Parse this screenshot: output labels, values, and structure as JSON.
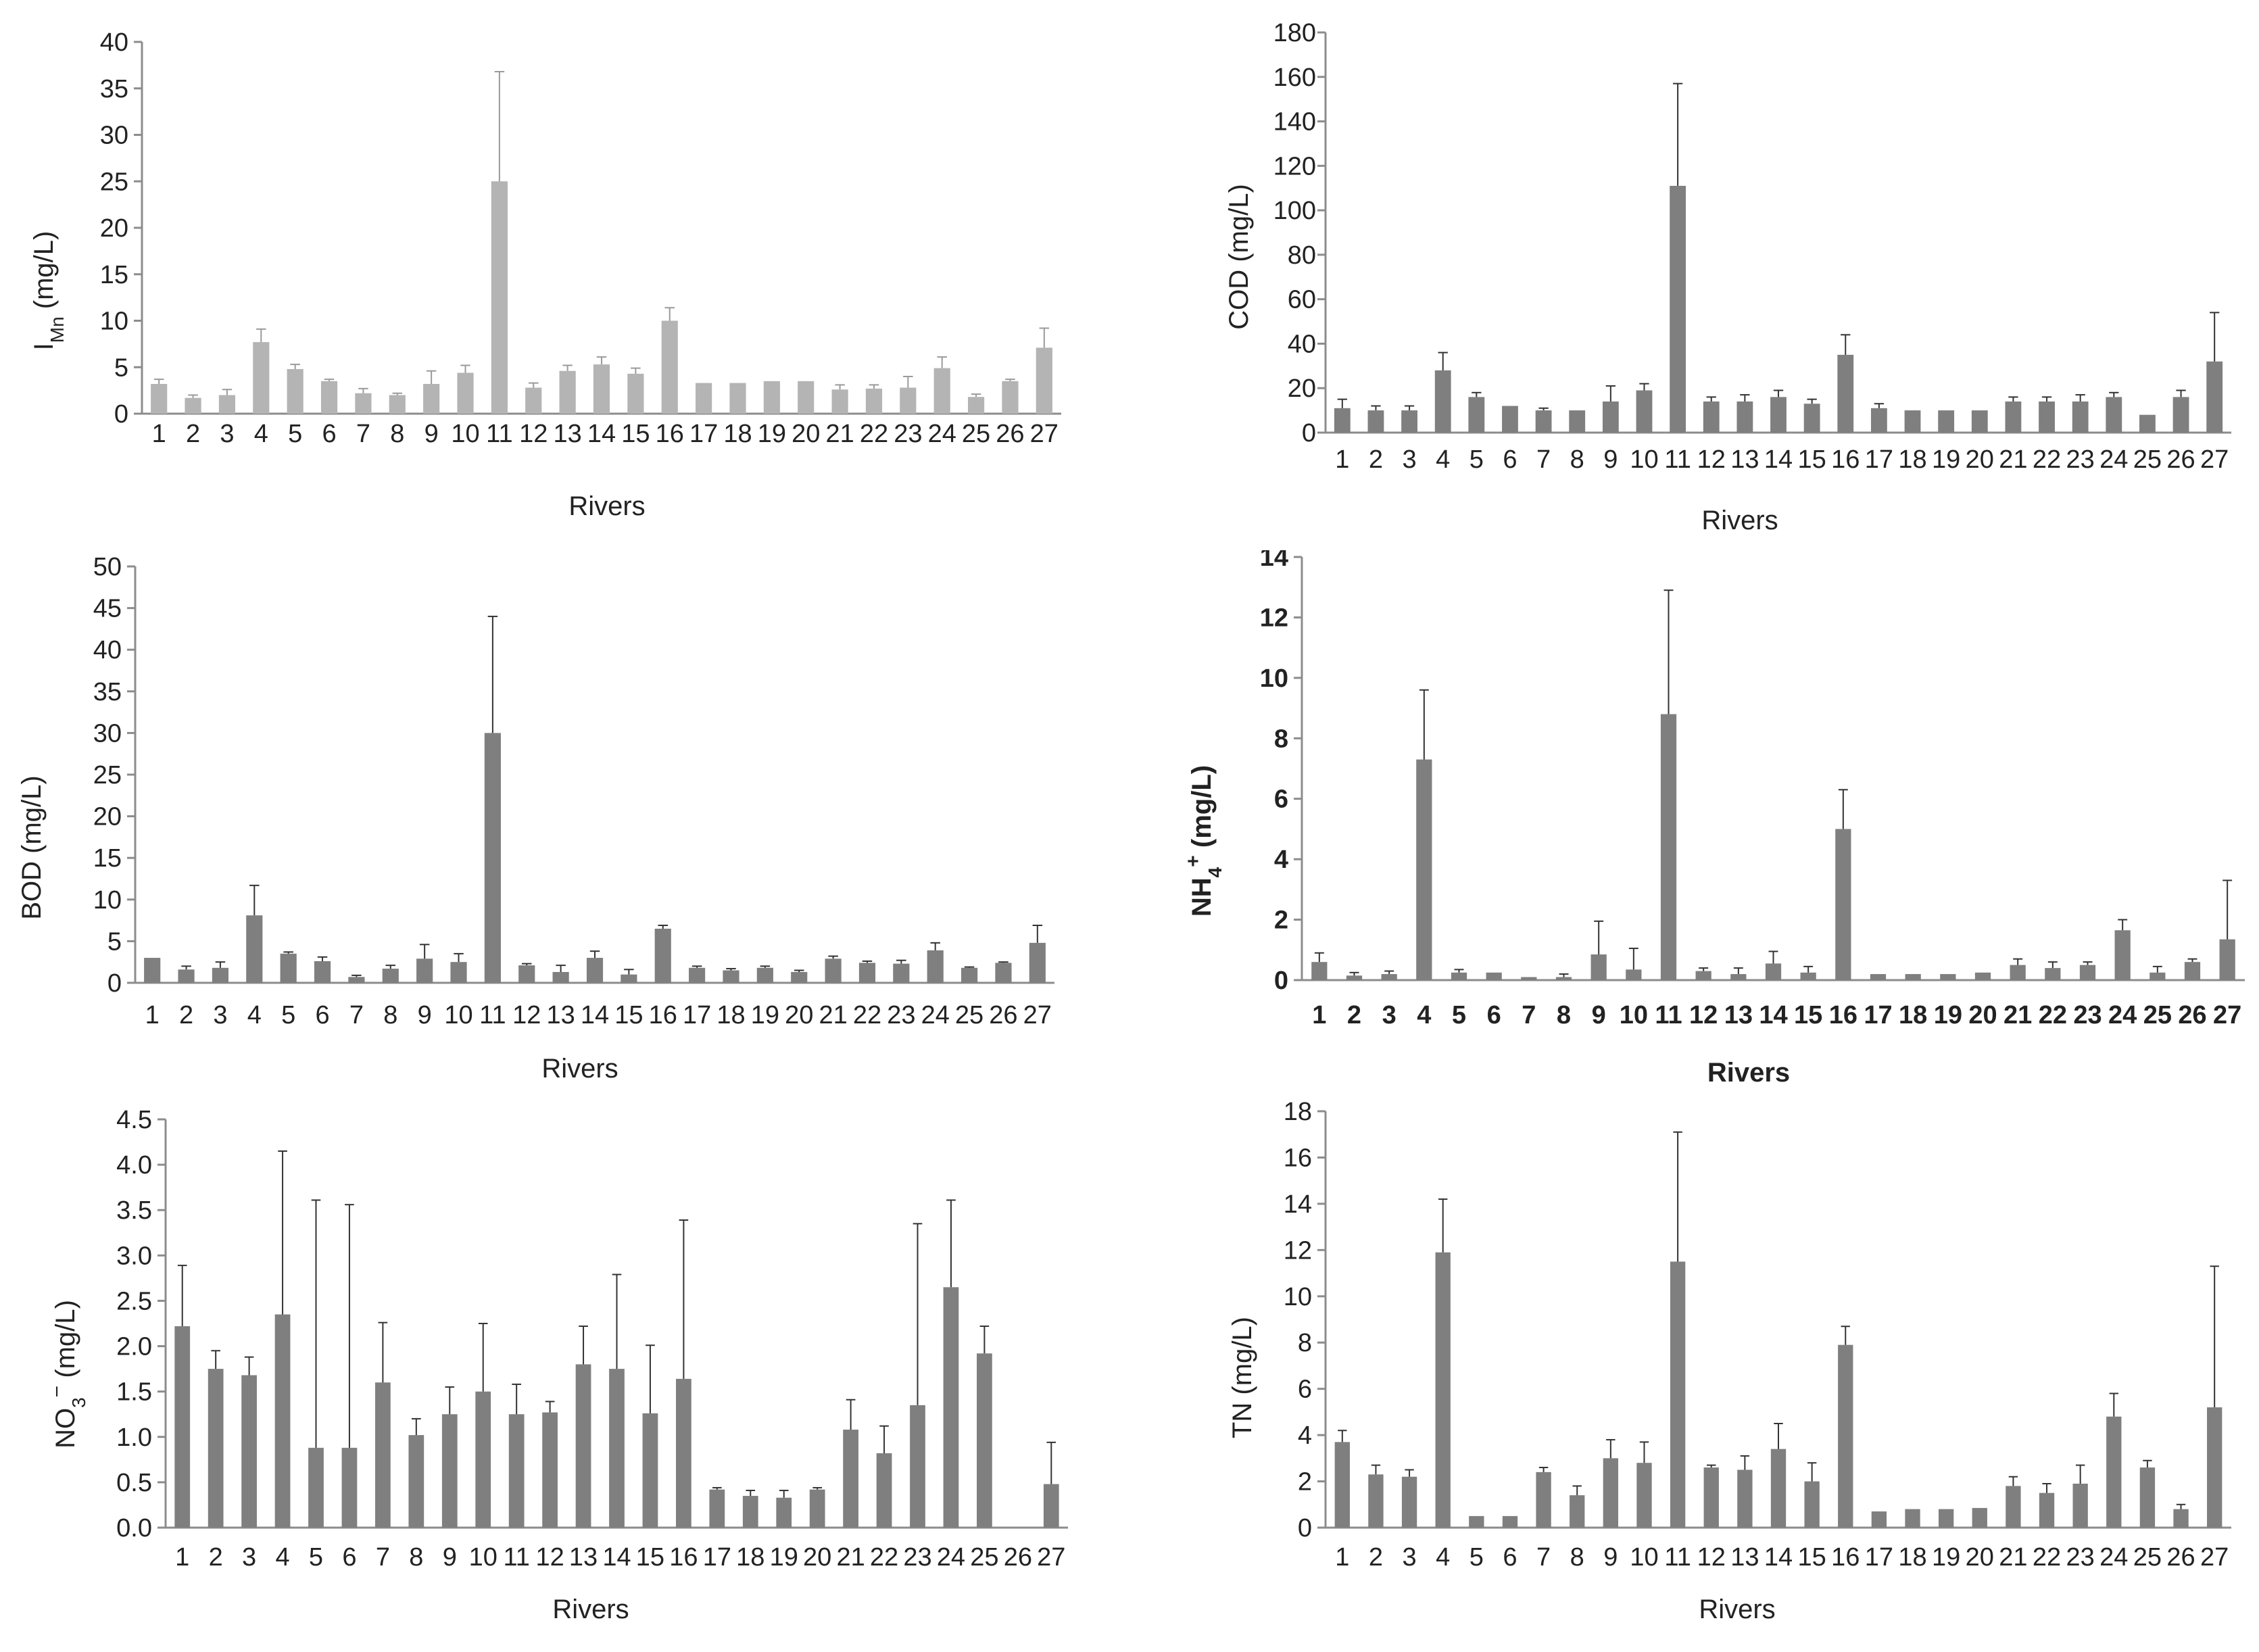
{
  "figure": {
    "x_axis_label": "Rivers",
    "categories": [
      "1",
      "2",
      "3",
      "4",
      "5",
      "6",
      "7",
      "8",
      "9",
      "10",
      "11",
      "12",
      "13",
      "14",
      "15",
      "16",
      "17",
      "18",
      "19",
      "20",
      "21",
      "22",
      "23",
      "24",
      "25",
      "26",
      "27"
    ]
  },
  "colors": {
    "light_bar": "#b4b4b4",
    "dark_bar": "#7f7f7f",
    "axis": "#8c8c8c",
    "text": "#222222"
  },
  "chart_data": [
    {
      "id": "imn",
      "type": "bar",
      "title": "",
      "ylabel_main": "I",
      "ylabel_sub": "Mn",
      "ylabel_tail": " (mg/L)",
      "xlabel": "Rivers",
      "ylim": [
        0,
        40
      ],
      "yticks": [
        "0",
        "5",
        "10",
        "15",
        "20",
        "25",
        "30",
        "35",
        "40"
      ],
      "bar_color": "light",
      "bold": false,
      "values": [
        3.2,
        1.7,
        2.0,
        7.7,
        4.8,
        3.5,
        2.2,
        2.0,
        3.2,
        4.4,
        25.0,
        2.8,
        4.6,
        5.3,
        4.3,
        10.0,
        3.3,
        3.3,
        3.5,
        3.5,
        2.6,
        2.7,
        2.8,
        4.9,
        1.8,
        3.5,
        7.1
      ],
      "errors": [
        0.5,
        0.3,
        0.6,
        1.4,
        0.5,
        0.2,
        0.5,
        0.2,
        1.4,
        0.8,
        11.8,
        0.5,
        0.6,
        0.8,
        0.6,
        1.4,
        0.0,
        0.0,
        0.0,
        0.0,
        0.5,
        0.4,
        1.2,
        1.2,
        0.3,
        0.2,
        2.1
      ]
    },
    {
      "id": "cod",
      "type": "bar",
      "title": "",
      "ylabel_main": "COD (mg/L)",
      "xlabel": "Rivers",
      "ylim": [
        0,
        180
      ],
      "yticks": [
        "0",
        "20",
        "40",
        "60",
        "80",
        "100",
        "120",
        "140",
        "160",
        "180"
      ],
      "bar_color": "dark",
      "bold": false,
      "values": [
        11,
        10,
        10,
        28,
        16,
        12,
        10,
        10,
        14,
        19,
        111,
        14,
        14,
        16,
        13,
        35,
        11,
        10,
        10,
        10,
        14,
        14,
        14,
        16,
        8,
        16,
        32
      ],
      "errors": [
        4,
        2,
        2,
        8,
        2,
        0,
        1,
        0,
        7,
        3,
        46,
        2,
        3,
        3,
        2,
        9,
        2,
        0,
        0,
        0,
        2,
        2,
        3,
        2,
        0,
        3,
        22
      ]
    },
    {
      "id": "bod",
      "type": "bar",
      "title": "",
      "ylabel_main": "BOD (mg/L)",
      "xlabel": "Rivers",
      "ylim": [
        0,
        50
      ],
      "yticks": [
        "0",
        "5",
        "10",
        "15",
        "20",
        "25",
        "30",
        "35",
        "40",
        "45",
        "50"
      ],
      "bar_color": "dark",
      "bold": false,
      "values": [
        3.0,
        1.6,
        1.8,
        8.1,
        3.5,
        2.6,
        0.7,
        1.7,
        2.9,
        2.5,
        30.0,
        2.1,
        1.3,
        3.0,
        1.0,
        6.5,
        1.8,
        1.5,
        1.8,
        1.3,
        2.9,
        2.4,
        2.3,
        3.9,
        1.8,
        2.4,
        4.8
      ],
      "errors": [
        0.0,
        0.4,
        0.7,
        3.6,
        0.2,
        0.5,
        0.2,
        0.4,
        1.7,
        1.0,
        14.0,
        0.2,
        0.8,
        0.8,
        0.6,
        0.4,
        0.2,
        0.2,
        0.2,
        0.2,
        0.3,
        0.2,
        0.4,
        0.9,
        0.1,
        0.1,
        2.1
      ]
    },
    {
      "id": "nh4",
      "type": "bar",
      "title": "",
      "ylabel_main": "NH",
      "ylabel_sub": "4",
      "ylabel_sup": "+",
      "ylabel_tail": " (mg/L)",
      "xlabel": "Rivers",
      "ylim": [
        0,
        14
      ],
      "yticks": [
        "0",
        "2",
        "4",
        "6",
        "8",
        "10",
        "12",
        "14"
      ],
      "bar_color": "dark",
      "bold": true,
      "values": [
        0.6,
        0.15,
        0.2,
        7.3,
        0.25,
        0.25,
        0.1,
        0.1,
        0.85,
        0.35,
        8.8,
        0.3,
        0.2,
        0.55,
        0.25,
        5.0,
        0.2,
        0.2,
        0.2,
        0.25,
        0.5,
        0.4,
        0.5,
        1.65,
        0.25,
        0.6,
        1.35
      ],
      "errors": [
        0.3,
        0.1,
        0.1,
        2.3,
        0.1,
        0.0,
        0.0,
        0.1,
        1.1,
        0.7,
        4.1,
        0.1,
        0.2,
        0.4,
        0.2,
        1.3,
        0.0,
        0.0,
        0.0,
        0.0,
        0.2,
        0.2,
        0.1,
        0.35,
        0.2,
        0.1,
        1.95
      ]
    },
    {
      "id": "no3",
      "type": "bar",
      "title": "",
      "ylabel_main": "NO",
      "ylabel_sub": "3",
      "ylabel_sup": "−",
      "ylabel_tail": " (mg/L)",
      "xlabel": "Rivers",
      "ylim": [
        0,
        4.5
      ],
      "yticks": [
        "0.0",
        "0.5",
        "1.0",
        "1.5",
        "2.0",
        "2.5",
        "3.0",
        "3.5",
        "4.0",
        "4.5"
      ],
      "bar_color": "dark",
      "bold": false,
      "values": [
        2.22,
        1.75,
        1.68,
        2.35,
        0.88,
        0.88,
        1.6,
        1.02,
        1.25,
        1.5,
        1.25,
        1.27,
        1.8,
        1.75,
        1.26,
        1.64,
        0.42,
        0.35,
        0.33,
        0.42,
        1.08,
        0.82,
        1.35,
        2.65,
        1.92,
        0.0,
        0.48
      ],
      "errors": [
        0.67,
        0.2,
        0.2,
        1.8,
        2.73,
        2.68,
        0.66,
        0.18,
        0.3,
        0.75,
        0.33,
        0.12,
        0.42,
        1.04,
        0.75,
        1.75,
        0.02,
        0.06,
        0.08,
        0.02,
        0.33,
        0.3,
        2.0,
        0.96,
        0.3,
        0.0,
        0.46
      ]
    },
    {
      "id": "tn",
      "type": "bar",
      "title": "",
      "ylabel_main": "TN (mg/L)",
      "xlabel": "Rivers",
      "ylim": [
        0,
        18
      ],
      "yticks": [
        "0",
        "2",
        "4",
        "6",
        "8",
        "10",
        "12",
        "14",
        "16",
        "18"
      ],
      "bar_color": "dark",
      "bold": false,
      "values": [
        3.7,
        2.3,
        2.2,
        11.9,
        0.5,
        0.5,
        2.4,
        1.4,
        3.0,
        2.8,
        11.5,
        2.6,
        2.5,
        3.4,
        2.0,
        7.9,
        0.7,
        0.8,
        0.8,
        0.85,
        1.8,
        1.5,
        1.9,
        4.8,
        2.6,
        0.8,
        5.2
      ],
      "errors": [
        0.5,
        0.4,
        0.3,
        2.3,
        0.0,
        0.0,
        0.2,
        0.4,
        0.8,
        0.9,
        5.6,
        0.1,
        0.6,
        1.1,
        0.8,
        0.8,
        0.0,
        0.0,
        0.0,
        0.0,
        0.4,
        0.4,
        0.8,
        1.0,
        0.3,
        0.2,
        6.1
      ]
    }
  ]
}
